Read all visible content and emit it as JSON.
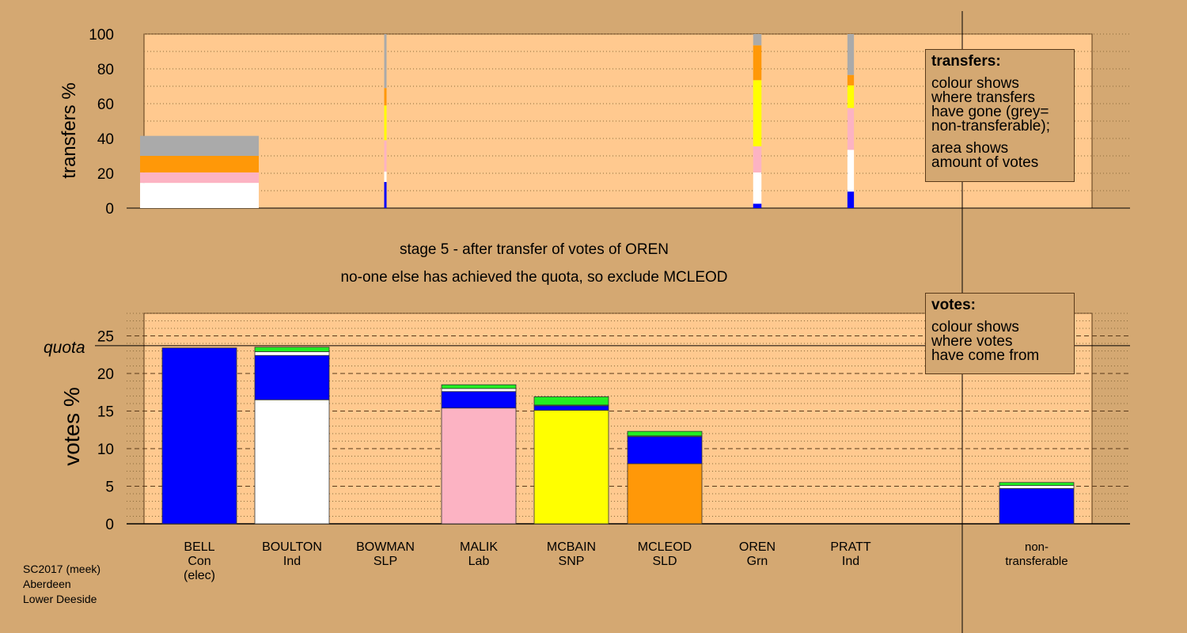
{
  "stage": {
    "line1": "stage 5 - after transfer of votes of OREN",
    "line2": "no-one else has achieved the quota, so exclude MCLEOD"
  },
  "footer": {
    "line1": "SC2017 (meek)",
    "line2": "Aberdeen",
    "line3": "Lower Deeside"
  },
  "legends": {
    "transfers": {
      "title": "transfers:",
      "lines": [
        "colour shows",
        "where transfers",
        "have gone (grey=",
        "non-transferable);"
      ],
      "lines2": [
        "area shows",
        "amount of votes"
      ]
    },
    "votes": {
      "title": "votes:",
      "lines": [
        "colour shows",
        "where votes",
        "have come from"
      ]
    }
  },
  "colors": {
    "background": "#d4a872",
    "plot_background": "#ffc98f",
    "Con": "#0000ff",
    "Ind": "#ffffff",
    "Lab": "#fcb3c3",
    "SNP": "#ffff00",
    "SLD": "#ff9808",
    "Grn": "#22ee22",
    "non_transferable": "#aaaaaa"
  },
  "chart_data": [
    {
      "type": "bar",
      "name": "transfers",
      "ylabel": "transfers %",
      "ylim": [
        0,
        100
      ],
      "yticks": [
        0,
        20,
        40,
        60,
        80,
        100
      ],
      "grid": "dotted",
      "note": "stacked bars; bar width proportional to amount of votes transferred",
      "bars": [
        {
          "column": "BELL",
          "width_share": 1.0,
          "segments": [
            {
              "to": "BOULTON",
              "color": "#ffffff",
              "value": 14.5
            },
            {
              "to": "MALIK",
              "color": "#fcb3c3",
              "value": 6
            },
            {
              "to": "MCLEOD",
              "color": "#ff9808",
              "value": 9.5
            },
            {
              "to": "non-transferable",
              "color": "#aaaaaa",
              "value": 11.5
            }
          ]
        },
        {
          "column": "BOWMAN",
          "width_share": 0.02,
          "segments": [
            {
              "to": "BELL",
              "color": "#0000ff",
              "value": 15
            },
            {
              "to": "BOULTON",
              "color": "#ffffff",
              "value": 6
            },
            {
              "to": "MALIK",
              "color": "#fcb3c3",
              "value": 18
            },
            {
              "to": "MCBAIN",
              "color": "#ffff00",
              "value": 20
            },
            {
              "to": "MCLEOD",
              "color": "#ff9808",
              "value": 10
            },
            {
              "to": "non-transferable",
              "color": "#aaaaaa",
              "value": 31
            }
          ]
        },
        {
          "column": "OREN",
          "width_share": 0.07,
          "segments": [
            {
              "to": "BELL",
              "color": "#0000ff",
              "value": 2.5
            },
            {
              "to": "BOULTON",
              "color": "#ffffff",
              "value": 18
            },
            {
              "to": "MALIK",
              "color": "#fcb3c3",
              "value": 15
            },
            {
              "to": "MCBAIN",
              "color": "#ffff00",
              "value": 38
            },
            {
              "to": "MCLEOD",
              "color": "#ff9808",
              "value": 20
            },
            {
              "to": "non-transferable",
              "color": "#aaaaaa",
              "value": 6.5
            }
          ]
        },
        {
          "column": "PRATT",
          "width_share": 0.055,
          "segments": [
            {
              "to": "BELL",
              "color": "#0000ff",
              "value": 9.5
            },
            {
              "to": "BOULTON",
              "color": "#ffffff",
              "value": 24
            },
            {
              "to": "MALIK",
              "color": "#fcb3c3",
              "value": 24
            },
            {
              "to": "MCBAIN",
              "color": "#ffff00",
              "value": 13
            },
            {
              "to": "MCLEOD",
              "color": "#ff9808",
              "value": 6
            },
            {
              "to": "non-transferable",
              "color": "#aaaaaa",
              "value": 23.5
            }
          ]
        }
      ]
    },
    {
      "type": "bar",
      "name": "votes",
      "ylabel": "votes %",
      "ylim": [
        0,
        28
      ],
      "yticks": [
        0,
        5,
        10,
        15,
        20,
        25
      ],
      "quota": 23.7,
      "quota_label": "quota",
      "grid": "dotted minor, dashed major",
      "categories": [
        {
          "name": "BELL",
          "party": "Con",
          "extra": "(elec)"
        },
        {
          "name": "BOULTON",
          "party": "Ind",
          "extra": ""
        },
        {
          "name": "BOWMAN",
          "party": "SLP",
          "extra": ""
        },
        {
          "name": "MALIK",
          "party": "Lab",
          "extra": ""
        },
        {
          "name": "MCBAIN",
          "party": "SNP",
          "extra": ""
        },
        {
          "name": "MCLEOD",
          "party": "SLD",
          "extra": ""
        },
        {
          "name": "OREN",
          "party": "Grn",
          "extra": ""
        },
        {
          "name": "PRATT",
          "party": "Ind",
          "extra": ""
        },
        {
          "name": "non-",
          "party": "transferable",
          "extra": ""
        }
      ],
      "stacks": [
        [
          {
            "from": "Con",
            "color": "#0000ff",
            "value": 23.4
          }
        ],
        [
          {
            "from": "Ind",
            "color": "#ffffff",
            "value": 16.5
          },
          {
            "from": "Con",
            "color": "#0000ff",
            "value": 5.9
          },
          {
            "from": "Ind",
            "color": "#ffffff",
            "value": 0.5
          },
          {
            "from": "Grn",
            "color": "#22ee22",
            "value": 0.6
          }
        ],
        [],
        [
          {
            "from": "Lab",
            "color": "#fcb3c3",
            "value": 15.4
          },
          {
            "from": "Con",
            "color": "#0000ff",
            "value": 2.2
          },
          {
            "from": "Ind",
            "color": "#ffffff",
            "value": 0.4
          },
          {
            "from": "Grn",
            "color": "#22ee22",
            "value": 0.5
          }
        ],
        [
          {
            "from": "SNP",
            "color": "#ffff00",
            "value": 15.1
          },
          {
            "from": "Con",
            "color": "#0000ff",
            "value": 0.6
          },
          {
            "from": "Ind",
            "color": "#ffffff",
            "value": 0.1
          },
          {
            "from": "Grn",
            "color": "#22ee22",
            "value": 1.1
          }
        ],
        [
          {
            "from": "SLD",
            "color": "#ff9808",
            "value": 8.0
          },
          {
            "from": "Con",
            "color": "#0000ff",
            "value": 3.6
          },
          {
            "from": "Ind",
            "color": "#ffffff",
            "value": 0.1
          },
          {
            "from": "Grn",
            "color": "#22ee22",
            "value": 0.6
          }
        ],
        [],
        [],
        [
          {
            "from": "Con",
            "color": "#0000ff",
            "value": 4.7
          },
          {
            "from": "Ind",
            "color": "#ffffff",
            "value": 0.4
          },
          {
            "from": "Grn",
            "color": "#22ee22",
            "value": 0.4
          }
        ]
      ]
    }
  ]
}
